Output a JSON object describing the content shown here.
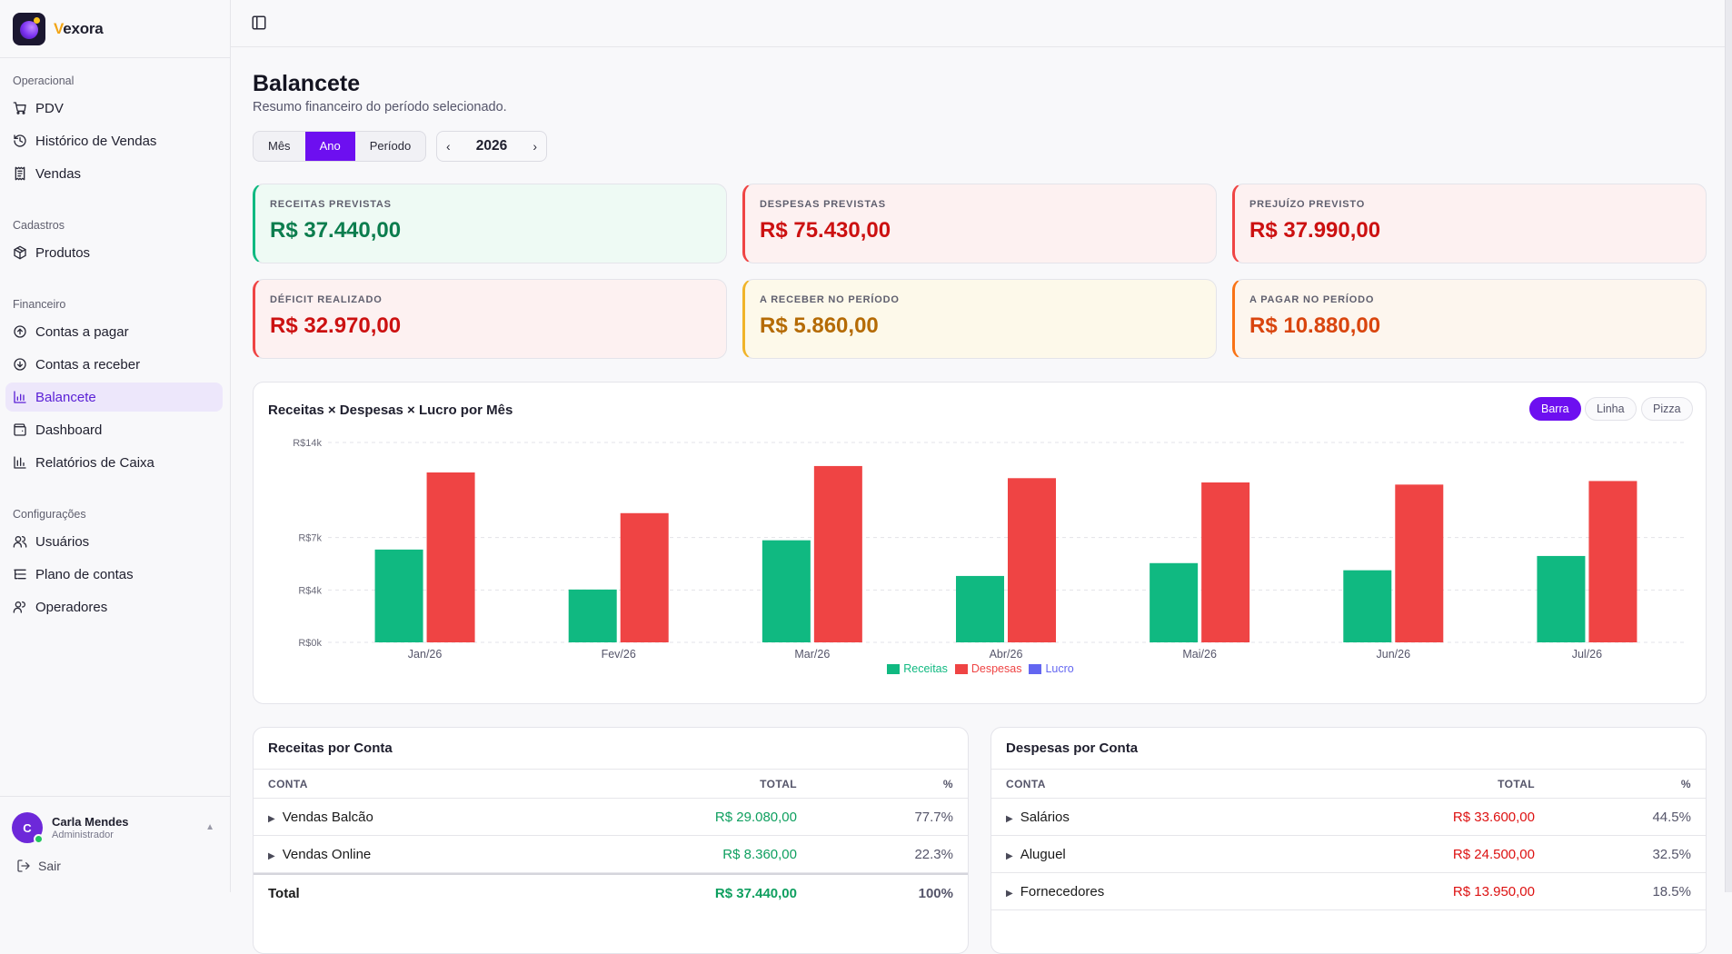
{
  "brand": {
    "initial": "V",
    "rest": "exora"
  },
  "sidebar": {
    "sections": [
      {
        "title": "Operacional",
        "items": [
          "PDV",
          "Histórico de Vendas",
          "Vendas"
        ]
      },
      {
        "title": "Cadastros",
        "items": [
          "Produtos"
        ]
      },
      {
        "title": "Financeiro",
        "items": [
          "Contas a pagar",
          "Contas a receber",
          "Balancete",
          "Dashboard",
          "Relatórios de Caixa"
        ]
      },
      {
        "title": "Configurações",
        "items": [
          "Usuários",
          "Plano de contas",
          "Operadores"
        ]
      }
    ],
    "active_item": "Balancete",
    "user": {
      "initial": "C",
      "name": "Carla Mendes",
      "role": "Administrador"
    },
    "logout_label": "Sair"
  },
  "page": {
    "title": "Balancete",
    "subtitle": "Resumo financeiro do período selecionado.",
    "period_tabs": [
      "Mês",
      "Ano",
      "Período"
    ],
    "active_period": "Ano",
    "year": "2026"
  },
  "cards": [
    {
      "label": "RECEITAS PREVISTAS",
      "value": "R$ 37.440,00",
      "tone": "green"
    },
    {
      "label": "DESPESAS PREVISTAS",
      "value": "R$ 75.430,00",
      "tone": "red"
    },
    {
      "label": "PREJUÍZO PREVISTO",
      "value": "R$ 37.990,00",
      "tone": "red"
    },
    {
      "label": "DÉFICIT REALIZADO",
      "value": "R$ 32.970,00",
      "tone": "red"
    },
    {
      "label": "A RECEBER NO PERÍODO",
      "value": "R$ 5.860,00",
      "tone": "yellow"
    },
    {
      "label": "A PAGAR NO PERÍODO",
      "value": "R$ 10.880,00",
      "tone": "orange"
    }
  ],
  "chart_panel": {
    "title": "Receitas × Despesas × Lucro por Mês",
    "types": [
      "Barra",
      "Linha",
      "Pizza"
    ],
    "active_type": "Barra"
  },
  "chart_data": {
    "type": "bar",
    "categories": [
      "Jan/26",
      "Fev/26",
      "Mar/26",
      "Abr/26",
      "Mai/26",
      "Jun/26",
      "Jul/26"
    ],
    "series": [
      {
        "name": "Receitas",
        "color": "#10b981",
        "values": [
          6500,
          3700,
          7150,
          4650,
          5550,
          5050,
          6050
        ]
      },
      {
        "name": "Despesas",
        "color": "#ef4444",
        "values": [
          11900,
          9050,
          12350,
          11500,
          11200,
          11050,
          11300
        ]
      },
      {
        "name": "Lucro",
        "color": "#6366f1",
        "values": [
          0,
          0,
          0,
          0,
          0,
          0,
          0
        ]
      }
    ],
    "y_ticks": [
      {
        "value": 0,
        "label": "R$0k"
      },
      {
        "value": 3670,
        "label": "R$4k"
      },
      {
        "value": 7340,
        "label": "R$7k"
      },
      {
        "value": 14000,
        "label": "R$14k"
      }
    ],
    "ylim": [
      0,
      14000
    ],
    "grid": true,
    "legend": "bottom-center"
  },
  "receitas_table": {
    "title": "Receitas por Conta",
    "headers": [
      "CONTA",
      "TOTAL",
      "%"
    ],
    "rows": [
      {
        "name": "Vendas Balcão",
        "total": "R$ 29.080,00",
        "pct": "77.7%"
      },
      {
        "name": "Vendas Online",
        "total": "R$ 8.360,00",
        "pct": "22.3%"
      }
    ],
    "footer": {
      "name": "Total",
      "total": "R$ 37.440,00",
      "pct": "100%"
    }
  },
  "despesas_table": {
    "title": "Despesas por Conta",
    "headers": [
      "CONTA",
      "TOTAL",
      "%"
    ],
    "rows": [
      {
        "name": "Salários",
        "total": "R$ 33.600,00",
        "pct": "44.5%"
      },
      {
        "name": "Aluguel",
        "total": "R$ 24.500,00",
        "pct": "32.5%"
      },
      {
        "name": "Fornecedores",
        "total": "R$ 13.950,00",
        "pct": "18.5%"
      }
    ]
  }
}
